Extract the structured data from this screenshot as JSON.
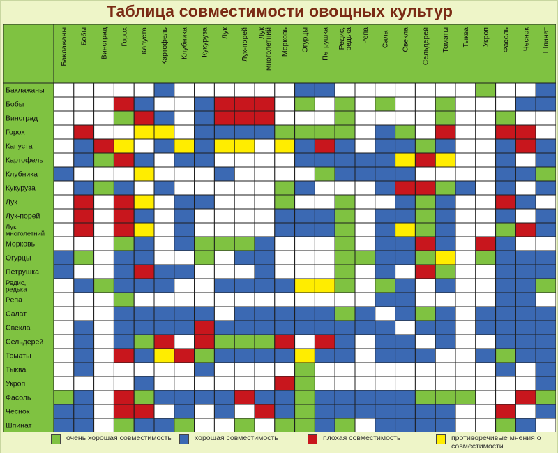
{
  "title": "Таблица совместимости овощных культур",
  "chart_data": {
    "type": "heatmap",
    "title": "Таблица совместимости овощных культур",
    "categories": [
      "Баклажаны",
      "Бобы",
      "Виноград",
      "Горох",
      "Капуста",
      "Картофель",
      "Клубника",
      "Кукуруза",
      "Лук",
      "Лук-порей",
      "Лук многолетний",
      "Морковь",
      "Огурцы",
      "Петрушка",
      "Редис, редька",
      "Репа",
      "Салат",
      "Свекла",
      "Сельдерей",
      "Томаты",
      "Тыква",
      "Укроп",
      "Фасоль",
      "Чеснок",
      "Шпинат"
    ],
    "legend": {
      "g": "очень хорошая совместимость",
      "b": "хорошая совместимость",
      "r": "плохая совместимость",
      "y": "противоречивые мнения о совместимости"
    },
    "cell_colors": {
      "w": "#ffffff",
      "g": "#7fc241",
      "b": "#3b69b3",
      "r": "#c8161d",
      "y": "#ffed00"
    },
    "matrix": [
      "wwwwwbwwwwwwbbwwwwwwwgwwb",
      "wwwrbwwbrrrwgwgwgwwgwwwbb",
      "wwwgrbwbrrrwwwgwwwwgwwgww",
      "wrwwyywbbbbggggwbgwrwwrrw",
      "wbrywbybyywybrbwbbgbwwbrb",
      "wbgrbwbbwwwwbbbbbyrywwbwb",
      "bwwwywwwbwwwwgbbbbwwwwbbg",
      "wbgbwbwwwwwgbwwwbrrgbwbwb",
      "wrwrywbbwwwgwwgwwbgbwwrbw",
      "wrwrbwbwwwwbbbgwbbgbwwbwb",
      "wrwrywbwwwwbbbgwbygbwwgrb",
      "wwwgbwbgggbwwwgwbbrbwrbww",
      "bgwbbwwgwbbwwwggbbgywgbbb",
      "bwwbrbbwwwbwwwgwbwrgwwbbb",
      "wbgbbbwwbbbbyygwgbwbwwbbg",
      "wwwgwwwwwwwwwwwwbbwwwwbbw",
      "wwwbbbbbwbbbbbgbwbgbwbbbb",
      "wbwbbbbrbbbbbbbbbwbbwbbbb",
      "wbwbgrwrgggrwrbwbbwbwwbbb",
      "wbwrbyrgbbbbybbwbbbwwbgbb",
      "wbwwwwwbwwwwgwwwwwwwwwbwb",
      "wwwwbwwwwwwrgwwwwwwwwwwwb",
      "gbwrgbbbbrbbgbbbbbgggwwrg",
      "bbwrrwbwbwrbgbbbbbbbwwrwb",
      "bbwgbbgwwgwggbgwbbbbwwgbw"
    ]
  }
}
